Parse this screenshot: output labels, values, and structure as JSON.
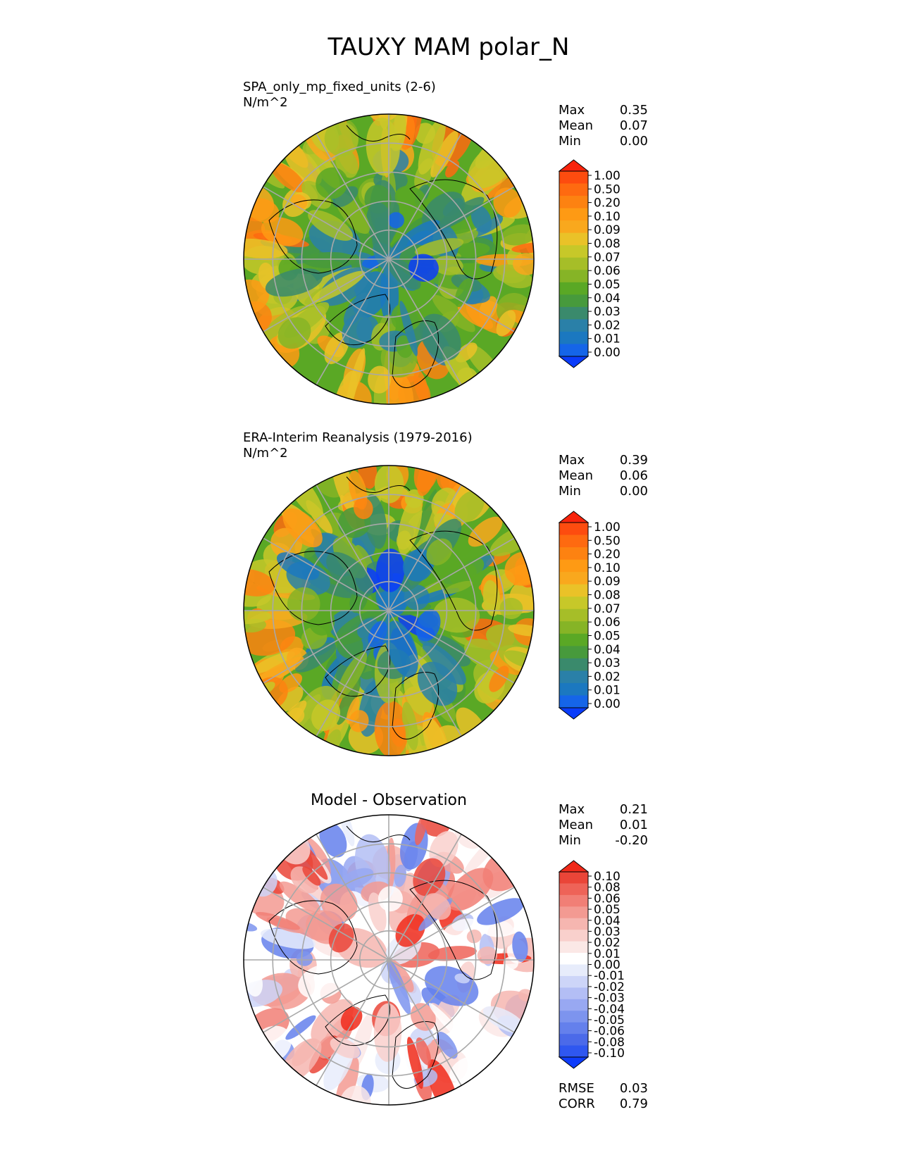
{
  "figure_title": "TAUXY MAM polar_N",
  "colors": {
    "seq": [
      "#0a3cfa",
      "#1565e8",
      "#1b78c0",
      "#2a80a8",
      "#3a8a6c",
      "#479a3c",
      "#5aa825",
      "#86b426",
      "#a6be28",
      "#c7c829",
      "#eac228",
      "#f9a81d",
      "#fe9a14",
      "#fd8211",
      "#fe6a10",
      "#fd4c0f",
      "#f8240c"
    ],
    "div": [
      "#0e3cfb",
      "#2f57f0",
      "#4b6ae9",
      "#6480ec",
      "#7d94ee",
      "#98a8f2",
      "#b3bef5",
      "#cdd5f8",
      "#e7ecfb",
      "#ffffff",
      "#fbe8e6",
      "#f9d0cc",
      "#f6b6b0",
      "#f39a92",
      "#f17f76",
      "#ee6358",
      "#ea4538",
      "#f02a1a"
    ]
  },
  "chart_data": [
    {
      "type": "heatmap",
      "subtype": "north-polar-stereographic-map",
      "title": "SPA_only_mp_fixed_units (2-6)",
      "units": "N/m^2",
      "stats": [
        {
          "label": "Max",
          "value": "0.35"
        },
        {
          "label": "Mean",
          "value": "0.07"
        },
        {
          "label": "Min",
          "value": "0.00"
        }
      ],
      "colorbar": {
        "ticks": [
          "1.00",
          "0.50",
          "0.20",
          "0.10",
          "0.09",
          "0.08",
          "0.07",
          "0.06",
          "0.05",
          "0.04",
          "0.03",
          "0.02",
          "0.01",
          "0.00"
        ],
        "extend": "both"
      }
    },
    {
      "type": "heatmap",
      "subtype": "north-polar-stereographic-map",
      "title": "ERA-Interim Reanalysis (1979-2016)",
      "units": "N/m^2",
      "stats": [
        {
          "label": "Max",
          "value": "0.39"
        },
        {
          "label": "Mean",
          "value": "0.06"
        },
        {
          "label": "Min",
          "value": "0.00"
        }
      ],
      "colorbar": {
        "ticks": [
          "1.00",
          "0.50",
          "0.20",
          "0.10",
          "0.09",
          "0.08",
          "0.07",
          "0.06",
          "0.05",
          "0.04",
          "0.03",
          "0.02",
          "0.01",
          "0.00"
        ],
        "extend": "both"
      }
    },
    {
      "type": "heatmap",
      "subtype": "north-polar-stereographic-map",
      "title": "Model - Observation",
      "stats": [
        {
          "label": "Max",
          "value": "0.21"
        },
        {
          "label": "Mean",
          "value": "0.01"
        },
        {
          "label": "Min",
          "value": "-0.20"
        }
      ],
      "colorbar": {
        "ticks": [
          "0.10",
          "0.08",
          "0.06",
          "0.05",
          "0.04",
          "0.03",
          "0.02",
          "0.01",
          "0.00",
          "-0.01",
          "-0.02",
          "-0.03",
          "-0.04",
          "-0.05",
          "-0.06",
          "-0.08",
          "-0.10"
        ],
        "extend": "both"
      },
      "metrics": [
        {
          "label": "RMSE",
          "value": "0.03"
        },
        {
          "label": "CORR",
          "value": "0.79"
        }
      ]
    }
  ]
}
